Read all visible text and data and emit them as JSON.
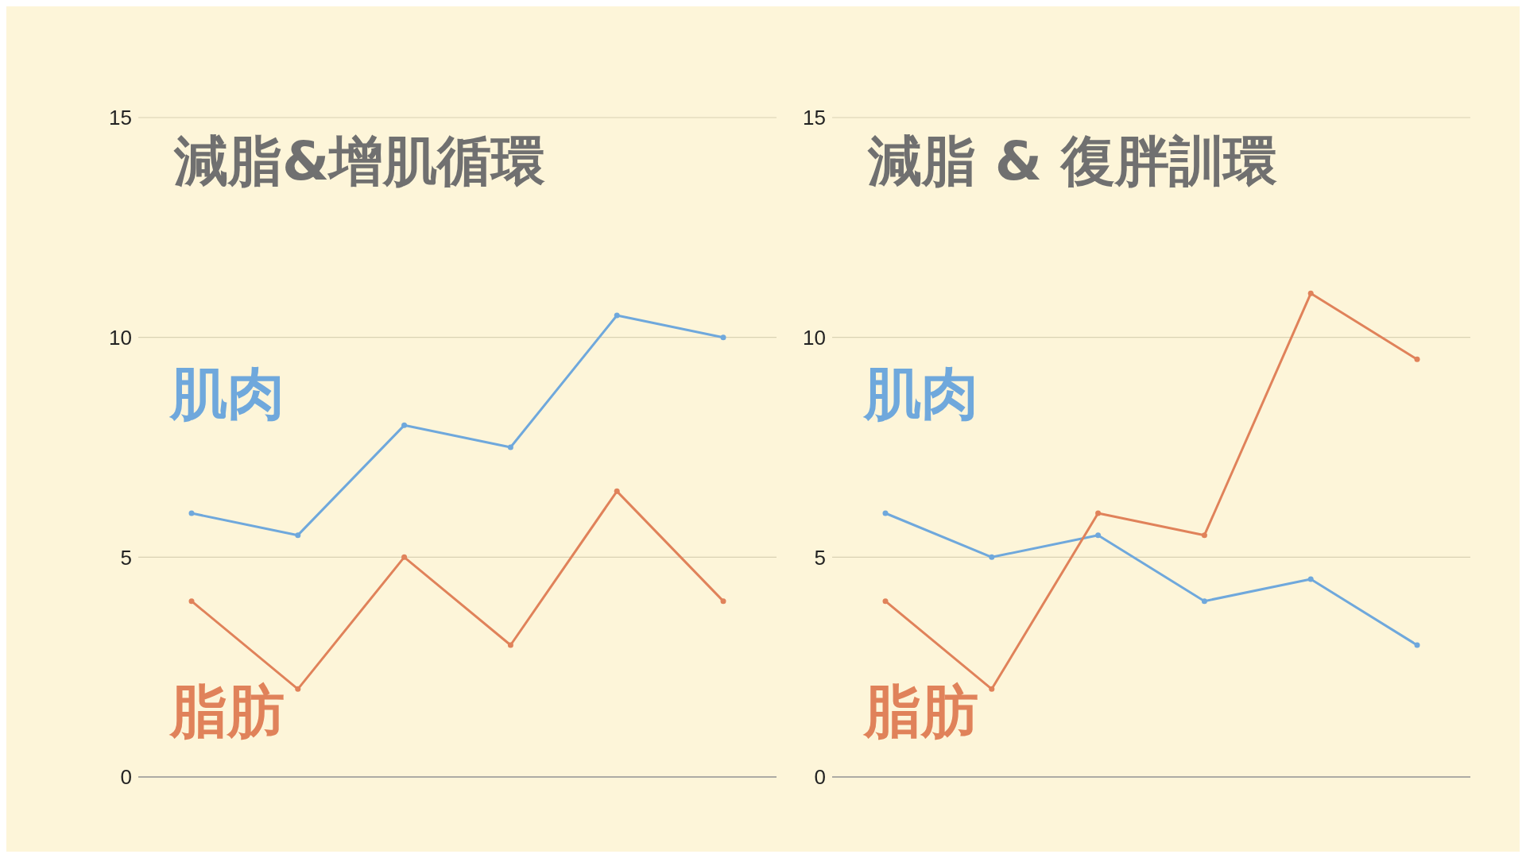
{
  "chart_data": [
    {
      "type": "line",
      "title": "減脂&增肌循環",
      "categories": [
        null,
        null,
        null,
        null,
        null,
        null
      ],
      "ylim": [
        0,
        15
      ],
      "yticks": [
        0,
        5,
        10,
        15
      ],
      "grid": "y",
      "tick_labels": "y",
      "marker": "circle",
      "series": [
        {
          "name": "肌肉",
          "color": "#6fa8dc",
          "values": [
            6,
            5.5,
            8,
            7.5,
            10.5,
            10
          ]
        },
        {
          "name": "脂肪",
          "color": "#e0825a",
          "values": [
            4,
            2,
            5,
            3,
            6.5,
            4
          ]
        }
      ]
    },
    {
      "type": "line",
      "title": "減脂 & 復胖訓環",
      "categories": [
        null,
        null,
        null,
        null,
        null,
        null
      ],
      "ylim": [
        0,
        15
      ],
      "yticks": [
        0,
        5,
        10,
        15
      ],
      "grid": "y",
      "tick_labels": "y",
      "marker": "circle",
      "series": [
        {
          "name": "肌肉",
          "color": "#6fa8dc",
          "values": [
            6,
            5,
            5.5,
            4,
            4.5,
            3
          ]
        },
        {
          "name": "脂肪",
          "color": "#e0825a",
          "values": [
            4,
            2,
            6,
            5.5,
            11,
            9.5
          ]
        }
      ]
    }
  ]
}
